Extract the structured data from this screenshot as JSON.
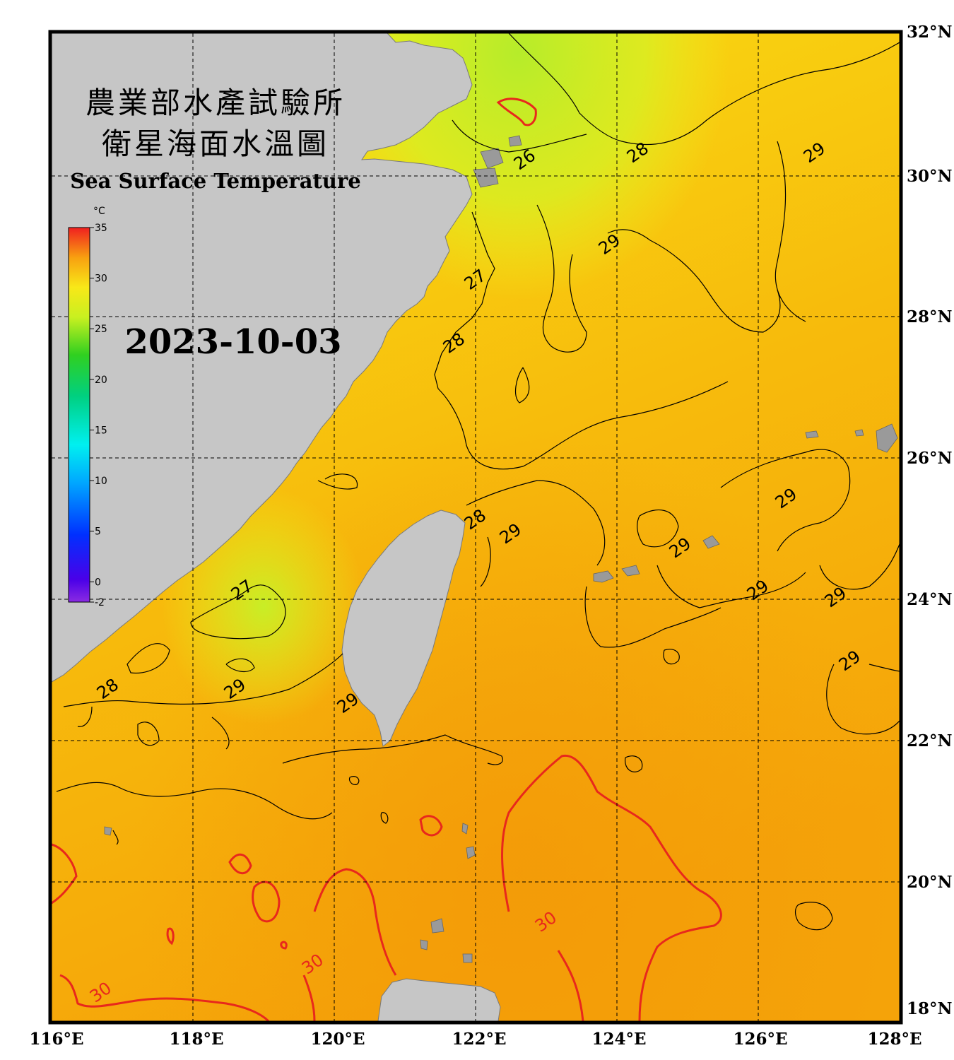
{
  "title": {
    "line1": "農業部水產試驗所",
    "line2": "衛星海面水溫圖",
    "english": "Sea Surface Temperature"
  },
  "date": "2023-10-03",
  "colorbar": {
    "unit": "°C",
    "min": -2,
    "max": 35,
    "ticks": [
      "35",
      "30",
      "25",
      "20",
      "15",
      "10",
      "5",
      "0",
      "-2"
    ]
  },
  "map": {
    "lon_range": [
      116,
      128
    ],
    "lat_range": [
      18,
      32
    ],
    "lon_ticks": [
      "116°E",
      "118°E",
      "120°E",
      "122°E",
      "124°E",
      "126°E",
      "128°E"
    ],
    "lat_ticks": [
      "32°N",
      "30°N",
      "28°N",
      "26°N",
      "24°N",
      "22°N",
      "20°N",
      "18°N"
    ],
    "grid": "dashed every 2 degrees"
  },
  "isotherm_labels": [
    {
      "text": "26",
      "lon": 122.7,
      "lat": 30.2
    },
    {
      "text": "28",
      "lon": 124.3,
      "lat": 30.3
    },
    {
      "text": "29",
      "lon": 126.8,
      "lat": 30.3
    },
    {
      "text": "29",
      "lon": 123.9,
      "lat": 29.0
    },
    {
      "text": "27",
      "lon": 122.0,
      "lat": 28.5
    },
    {
      "text": "28",
      "lon": 121.7,
      "lat": 27.6
    },
    {
      "text": "28",
      "lon": 122.0,
      "lat": 25.1
    },
    {
      "text": "29",
      "lon": 122.5,
      "lat": 24.9
    },
    {
      "text": "29",
      "lon": 126.4,
      "lat": 25.4
    },
    {
      "text": "29",
      "lon": 124.9,
      "lat": 24.7
    },
    {
      "text": "27",
      "lon": 118.7,
      "lat": 24.1
    },
    {
      "text": "29",
      "lon": 126.0,
      "lat": 24.1
    },
    {
      "text": "29",
      "lon": 127.1,
      "lat": 24.0
    },
    {
      "text": "29",
      "lon": 127.3,
      "lat": 23.1
    },
    {
      "text": "28",
      "lon": 116.8,
      "lat": 22.7
    },
    {
      "text": "29",
      "lon": 118.6,
      "lat": 22.7
    },
    {
      "text": "29",
      "lon": 120.2,
      "lat": 22.5
    },
    {
      "text": "30",
      "lon": 123.0,
      "lat": 19.4
    },
    {
      "text": "30",
      "lon": 119.7,
      "lat": 18.8
    },
    {
      "text": "30",
      "lon": 116.7,
      "lat": 18.4
    }
  ]
}
